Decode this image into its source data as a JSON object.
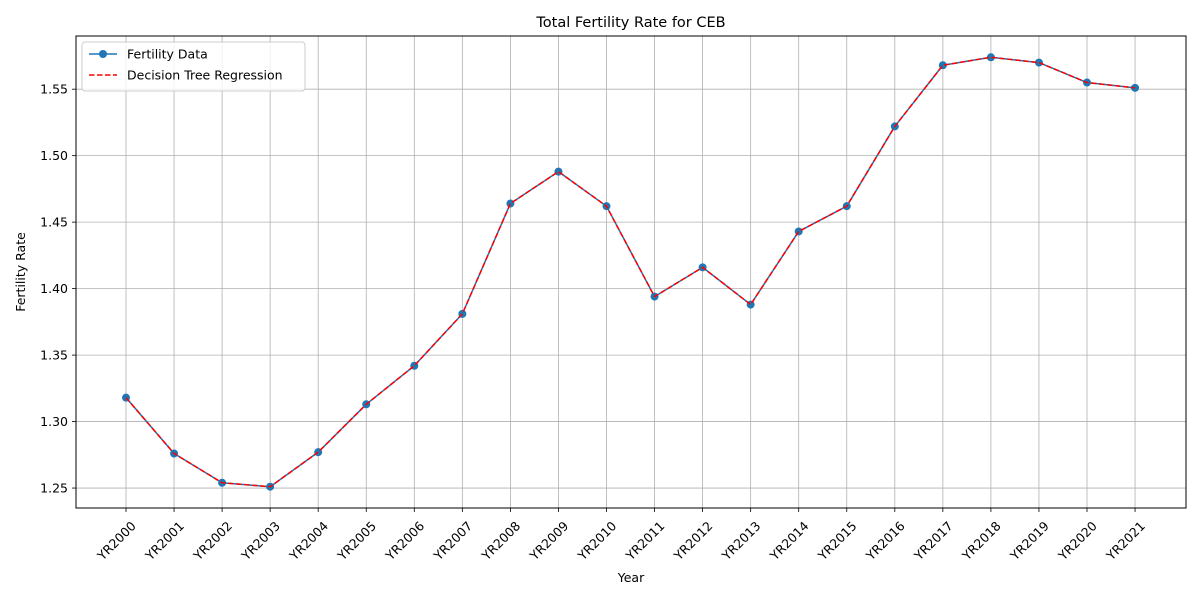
{
  "chart_data": {
    "type": "line",
    "title": "Total Fertility Rate for CEB",
    "xlabel": "Year",
    "ylabel": "Fertility Rate",
    "categories": [
      "YR2000",
      "YR2001",
      "YR2002",
      "YR2003",
      "YR2004",
      "YR2005",
      "YR2006",
      "YR2007",
      "YR2008",
      "YR2009",
      "YR2010",
      "YR2011",
      "YR2012",
      "YR2013",
      "YR2014",
      "YR2015",
      "YR2016",
      "YR2017",
      "YR2018",
      "YR2019",
      "YR2020",
      "YR2021"
    ],
    "series": [
      {
        "name": "Fertility Data",
        "color": "#1f77b4",
        "style": "solid-with-markers",
        "values": [
          1.318,
          1.276,
          1.254,
          1.251,
          1.277,
          1.313,
          1.342,
          1.381,
          1.464,
          1.488,
          1.462,
          1.394,
          1.416,
          1.388,
          1.443,
          1.462,
          1.522,
          1.568,
          1.574,
          1.57,
          1.555,
          1.551
        ]
      },
      {
        "name": "Decision Tree Regression",
        "color": "#ff0000",
        "style": "dashed",
        "values": [
          1.318,
          1.276,
          1.254,
          1.251,
          1.277,
          1.313,
          1.342,
          1.381,
          1.464,
          1.488,
          1.462,
          1.394,
          1.416,
          1.388,
          1.443,
          1.462,
          1.522,
          1.568,
          1.574,
          1.57,
          1.555,
          1.551
        ]
      }
    ],
    "yticks": [
      1.25,
      1.3,
      1.35,
      1.4,
      1.45,
      1.5,
      1.55
    ],
    "ylim": [
      1.235,
      1.59
    ],
    "grid": true,
    "legend": "top-left"
  }
}
